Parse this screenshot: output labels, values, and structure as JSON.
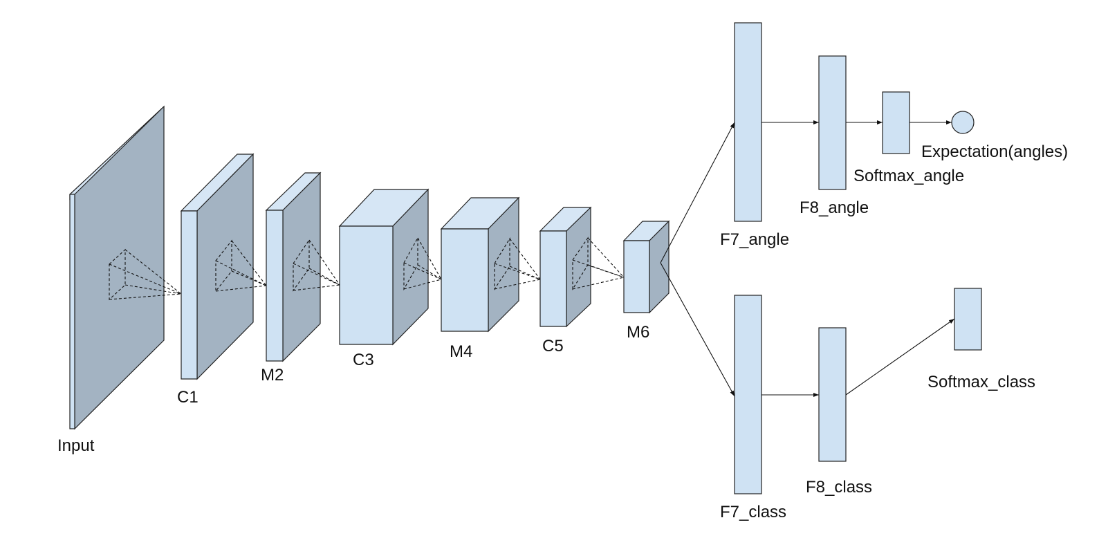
{
  "labels": {
    "input": "Input",
    "c1": "C1",
    "m2": "M2",
    "c3": "C3",
    "m4": "M4",
    "c5": "C5",
    "m6": "M6",
    "f7_angle": "F7_angle",
    "f8_angle": "F8_angle",
    "softmax_angle": "Softmax_angle",
    "expectation": "Expectation(angles)",
    "f7_class": "F7_class",
    "f8_class": "F8_class",
    "softmax_class": "Softmax_class"
  },
  "colors": {
    "face": "#cfe2f3",
    "side": "#a3b3c2",
    "stroke": "#222222"
  }
}
